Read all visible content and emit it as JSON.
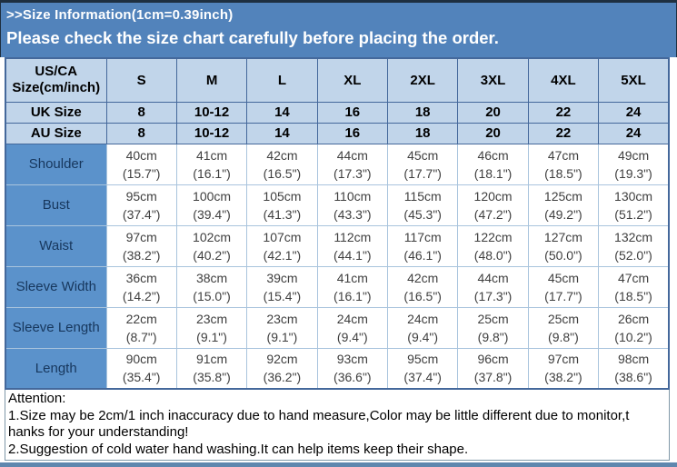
{
  "banner": {
    "title": ">>Size Information(1cm=0.39inch)",
    "subtitle": "Please check the size chart carefully before placing the order."
  },
  "size_table": {
    "header_row": {
      "label": "US/CA\nSize(cm/inch)",
      "sizes": [
        "S",
        "M",
        "L",
        "XL",
        "2XL",
        "3XL",
        "4XL",
        "5XL"
      ]
    },
    "region_rows": [
      {
        "label": "UK Size",
        "values": [
          "8",
          "10-12",
          "14",
          "16",
          "18",
          "20",
          "22",
          "24"
        ]
      },
      {
        "label": "AU Size",
        "values": [
          "8",
          "10-12",
          "14",
          "16",
          "18",
          "20",
          "22",
          "24"
        ]
      }
    ],
    "measurement_rows": [
      {
        "label": "Shoulder",
        "values": [
          [
            "40cm",
            "(15.7\")"
          ],
          [
            "41cm",
            "(16.1\")"
          ],
          [
            "42cm",
            "(16.5\")"
          ],
          [
            "44cm",
            "(17.3\")"
          ],
          [
            "45cm",
            "(17.7\")"
          ],
          [
            "46cm",
            "(18.1\")"
          ],
          [
            "47cm",
            "(18.5\")"
          ],
          [
            "49cm",
            "(19.3\")"
          ]
        ]
      },
      {
        "label": "Bust",
        "values": [
          [
            "95cm",
            "(37.4\")"
          ],
          [
            "100cm",
            "(39.4\")"
          ],
          [
            "105cm",
            "(41.3\")"
          ],
          [
            "110cm",
            "(43.3\")"
          ],
          [
            "115cm",
            "(45.3\")"
          ],
          [
            "120cm",
            "(47.2\")"
          ],
          [
            "125cm",
            "(49.2\")"
          ],
          [
            "130cm",
            "(51.2\")"
          ]
        ]
      },
      {
        "label": "Waist",
        "values": [
          [
            "97cm",
            "(38.2\")"
          ],
          [
            "102cm",
            "(40.2\")"
          ],
          [
            "107cm",
            "(42.1\")"
          ],
          [
            "112cm",
            "(44.1\")"
          ],
          [
            "117cm",
            "(46.1\")"
          ],
          [
            "122cm",
            "(48.0\")"
          ],
          [
            "127cm",
            "(50.0\")"
          ],
          [
            "132cm",
            "(52.0\")"
          ]
        ]
      },
      {
        "label": "Sleeve Width",
        "values": [
          [
            "36cm",
            "(14.2\")"
          ],
          [
            "38cm",
            "(15.0\")"
          ],
          [
            "39cm",
            "(15.4\")"
          ],
          [
            "41cm",
            "(16.1\")"
          ],
          [
            "42cm",
            "(16.5\")"
          ],
          [
            "44cm",
            "(17.3\")"
          ],
          [
            "45cm",
            "(17.7\")"
          ],
          [
            "47cm",
            "(18.5\")"
          ]
        ]
      },
      {
        "label": "Sleeve Length",
        "values": [
          [
            "22cm",
            "(8.7\")"
          ],
          [
            "23cm",
            "(9.1\")"
          ],
          [
            "23cm",
            "(9.1\")"
          ],
          [
            "24cm",
            "(9.4\")"
          ],
          [
            "24cm",
            "(9.4\")"
          ],
          [
            "25cm",
            "(9.8\")"
          ],
          [
            "25cm",
            "(9.8\")"
          ],
          [
            "26cm",
            "(10.2\")"
          ]
        ]
      },
      {
        "label": "Length",
        "values": [
          [
            "90cm",
            "(35.4\")"
          ],
          [
            "91cm",
            "(35.8\")"
          ],
          [
            "92cm",
            "(36.2\")"
          ],
          [
            "93cm",
            "(36.6\")"
          ],
          [
            "95cm",
            "(37.4\")"
          ],
          [
            "96cm",
            "(37.8\")"
          ],
          [
            "97cm",
            "(38.2\")"
          ],
          [
            "98cm",
            "(38.6\")"
          ]
        ]
      }
    ]
  },
  "attention": {
    "lines": [
      "Attention:",
      "1.Size may be 2cm/1 inch inaccuracy due to hand measure,Color may be little different due to monitor,t",
      "hanks for your understanding!",
      "2.Suggestion of cold water hand washing.It can help items keep their shape."
    ]
  },
  "colors": {
    "banner_bg": "#5283BB",
    "banner_text": "#FFFFFF",
    "header_bg": "#C1D5EA",
    "label_bg": "#5B92CB",
    "label_text": "#17375D",
    "dark_border": "#44689B",
    "light_border": "#A9C4DD",
    "outer_border": "#1E2F40",
    "attention_border": "#7F98A8",
    "strip_bg": "#5F87AE",
    "data_text": "#3F3F3F"
  }
}
